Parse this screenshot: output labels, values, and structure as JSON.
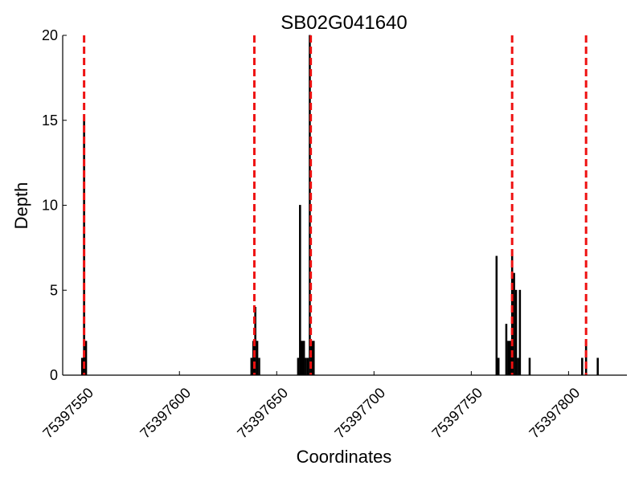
{
  "chart_data": {
    "type": "bar",
    "title": "SB02G041640",
    "xlabel": "Coordinates",
    "ylabel": "Depth",
    "xlim": [
      75397540,
      75397830
    ],
    "ylim": [
      0,
      20
    ],
    "xticks": [
      75397550,
      75397600,
      75397650,
      75397700,
      75397750,
      75397800
    ],
    "yticks": [
      0,
      5,
      10,
      15,
      20
    ],
    "grid": false,
    "bar_fill": "#000000",
    "bar_edge": "#000000",
    "bars": [
      {
        "x": 75397550,
        "y": 1
      },
      {
        "x": 75397551,
        "y": 15
      },
      {
        "x": 75397552,
        "y": 2
      },
      {
        "x": 75397637,
        "y": 1
      },
      {
        "x": 75397638,
        "y": 2
      },
      {
        "x": 75397639,
        "y": 4
      },
      {
        "x": 75397640,
        "y": 2
      },
      {
        "x": 75397641,
        "y": 1
      },
      {
        "x": 75397661,
        "y": 1
      },
      {
        "x": 75397662,
        "y": 10
      },
      {
        "x": 75397663,
        "y": 2
      },
      {
        "x": 75397664,
        "y": 2
      },
      {
        "x": 75397665,
        "y": 1
      },
      {
        "x": 75397666,
        "y": 1
      },
      {
        "x": 75397667,
        "y": 20
      },
      {
        "x": 75397668,
        "y": 2
      },
      {
        "x": 75397669,
        "y": 2
      },
      {
        "x": 75397763,
        "y": 7
      },
      {
        "x": 75397764,
        "y": 1
      },
      {
        "x": 75397768,
        "y": 3
      },
      {
        "x": 75397769,
        "y": 2
      },
      {
        "x": 75397770,
        "y": 2
      },
      {
        "x": 75397771,
        "y": 7
      },
      {
        "x": 75397772,
        "y": 6
      },
      {
        "x": 75397773,
        "y": 5
      },
      {
        "x": 75397774,
        "y": 1
      },
      {
        "x": 75397775,
        "y": 5
      },
      {
        "x": 75397780,
        "y": 1
      },
      {
        "x": 75397807,
        "y": 1
      },
      {
        "x": 75397809,
        "y": 2
      },
      {
        "x": 75397815,
        "y": 1
      }
    ],
    "reference_lines": {
      "x": [
        75397551,
        75397638.5,
        75397667.5,
        75397771,
        75397809
      ],
      "color": "#ee1111",
      "style": "dashed"
    }
  }
}
